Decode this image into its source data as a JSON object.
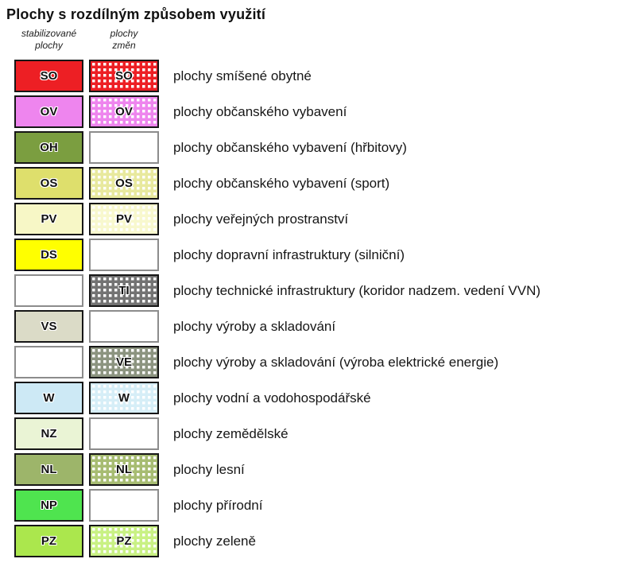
{
  "title": "Plochy s rozdílným způsobem využití",
  "column_headers": {
    "stabilized": [
      "stabilizované",
      "plochy"
    ],
    "changes": [
      "plochy",
      "změn"
    ]
  },
  "colors": {
    "filled_border": "#161616",
    "empty_border": "#8C8C8C",
    "dot_color": "#FFFFFF",
    "text": "#161616"
  },
  "rows": [
    {
      "label": "plochy smíšené obytné",
      "stabilized": {
        "code": "SO",
        "fill": "#ED1F24",
        "dotted": false
      },
      "change": {
        "code": "SO",
        "fill": "#ED1F24",
        "dotted": true
      }
    },
    {
      "label": "plochy občanského vybavení",
      "stabilized": {
        "code": "OV",
        "fill": "#EE85EE",
        "dotted": false
      },
      "change": {
        "code": "OV",
        "fill": "#EE85EE",
        "dotted": true
      }
    },
    {
      "label": "plochy občanského vybavení (hřbitovy)",
      "stabilized": {
        "code": "OH",
        "fill": "#7B9E40",
        "dotted": false
      },
      "change": null
    },
    {
      "label": "plochy občanského vybavení (sport)",
      "stabilized": {
        "code": "OS",
        "fill": "#DEDF6C",
        "dotted": false
      },
      "change": {
        "code": "OS",
        "fill": "#E8E99E",
        "dotted": true
      }
    },
    {
      "label": "plochy veřejných prostranství",
      "stabilized": {
        "code": "PV",
        "fill": "#F7F7C6",
        "dotted": false
      },
      "change": {
        "code": "PV",
        "fill": "#F8F8CE",
        "dotted": true
      }
    },
    {
      "label": "plochy dopravní infrastruktury (silniční)",
      "stabilized": {
        "code": "DS",
        "fill": "#FFFF00",
        "dotted": false
      },
      "change": null
    },
    {
      "label": "plochy technické infrastruktury (koridor nadzem. vedení VVN)",
      "stabilized": null,
      "change": {
        "code": "TI",
        "fill": "#737373",
        "dotted": true
      }
    },
    {
      "label": "plochy výroby a skladování",
      "stabilized": {
        "code": "VS",
        "fill": "#DBDBC7",
        "dotted": false
      },
      "change": null
    },
    {
      "label": "plochy výroby a skladování (výroba elektrické energie)",
      "stabilized": null,
      "change": {
        "code": "VE",
        "fill": "#8C9480",
        "dotted": true
      }
    },
    {
      "label": "plochy vodní a vodohospodářské",
      "stabilized": {
        "code": "W",
        "fill": "#CDE9F5",
        "dotted": false
      },
      "change": {
        "code": "W",
        "fill": "#D6EEF7",
        "dotted": true
      }
    },
    {
      "label": "plochy zemědělské",
      "stabilized": {
        "code": "NZ",
        "fill": "#EAF4D5",
        "dotted": false
      },
      "change": null
    },
    {
      "label": "plochy lesní",
      "stabilized": {
        "code": "NL",
        "fill": "#9DB56A",
        "dotted": false
      },
      "change": {
        "code": "NL",
        "fill": "#A7BC72",
        "dotted": true
      }
    },
    {
      "label": "plochy přírodní",
      "stabilized": {
        "code": "NP",
        "fill": "#4FE44F",
        "dotted": false
      },
      "change": null
    },
    {
      "label": "plochy zeleně",
      "stabilized": {
        "code": "PZ",
        "fill": "#ABE74D",
        "dotted": false
      },
      "change": {
        "code": "PZ",
        "fill": "#C9F184",
        "dotted": true
      }
    }
  ]
}
